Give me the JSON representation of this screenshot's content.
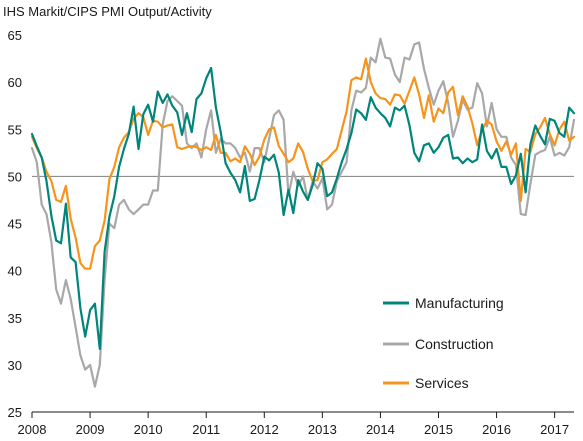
{
  "chart_data": {
    "type": "line",
    "title": "IHS Markit/CIPS PMI Output/Activity",
    "xlabel": "",
    "ylabel": "",
    "ylim": [
      25,
      65
    ],
    "yticks": [
      25,
      30,
      35,
      40,
      45,
      50,
      55,
      60,
      65
    ],
    "xticks": [
      "2008",
      "2009",
      "2010",
      "2011",
      "2012",
      "2013",
      "2014",
      "2015",
      "2016",
      "2017"
    ],
    "xlim": [
      "2008-01",
      "2017-05"
    ],
    "reference_line": 50,
    "legend_position": "bottom-right",
    "x": [
      "2008-01",
      "2008-02",
      "2008-03",
      "2008-04",
      "2008-05",
      "2008-06",
      "2008-07",
      "2008-08",
      "2008-09",
      "2008-10",
      "2008-11",
      "2008-12",
      "2009-01",
      "2009-02",
      "2009-03",
      "2009-04",
      "2009-05",
      "2009-06",
      "2009-07",
      "2009-08",
      "2009-09",
      "2009-10",
      "2009-11",
      "2009-12",
      "2010-01",
      "2010-02",
      "2010-03",
      "2010-04",
      "2010-05",
      "2010-06",
      "2010-07",
      "2010-08",
      "2010-09",
      "2010-10",
      "2010-11",
      "2010-12",
      "2011-01",
      "2011-02",
      "2011-03",
      "2011-04",
      "2011-05",
      "2011-06",
      "2011-07",
      "2011-08",
      "2011-09",
      "2011-10",
      "2011-11",
      "2011-12",
      "2012-01",
      "2012-02",
      "2012-03",
      "2012-04",
      "2012-05",
      "2012-06",
      "2012-07",
      "2012-08",
      "2012-09",
      "2012-10",
      "2012-11",
      "2012-12",
      "2013-01",
      "2013-02",
      "2013-03",
      "2013-04",
      "2013-05",
      "2013-06",
      "2013-07",
      "2013-08",
      "2013-09",
      "2013-10",
      "2013-11",
      "2013-12",
      "2014-01",
      "2014-02",
      "2014-03",
      "2014-04",
      "2014-05",
      "2014-06",
      "2014-07",
      "2014-08",
      "2014-09",
      "2014-10",
      "2014-11",
      "2014-12",
      "2015-01",
      "2015-02",
      "2015-03",
      "2015-04",
      "2015-05",
      "2015-06",
      "2015-07",
      "2015-08",
      "2015-09",
      "2015-10",
      "2015-11",
      "2015-12",
      "2016-01",
      "2016-02",
      "2016-03",
      "2016-04",
      "2016-05",
      "2016-06",
      "2016-07",
      "2016-08",
      "2016-09",
      "2016-10",
      "2016-11",
      "2016-12",
      "2017-01",
      "2017-02",
      "2017-03",
      "2017-04",
      "2017-05"
    ],
    "series": [
      {
        "name": "Manufacturing",
        "color": "#00857a",
        "values": [
          54.5,
          53.2,
          52.0,
          49.5,
          45.8,
          43.2,
          42.9,
          47.1,
          41.4,
          40.9,
          36.0,
          33.0,
          35.8,
          36.5,
          31.7,
          42.0,
          45.7,
          47.9,
          51.0,
          52.9,
          54.5,
          57.4,
          52.9,
          56.6,
          57.6,
          55.8,
          59.0,
          57.8,
          58.7,
          57.5,
          56.8,
          54.4,
          56.7,
          54.7,
          58.2,
          58.8,
          60.4,
          61.5,
          57.3,
          54.7,
          51.4,
          50.4,
          49.6,
          48.3,
          51.1,
          47.4,
          47.6,
          49.6,
          52.1,
          51.7,
          52.3,
          50.4,
          45.9,
          48.6,
          46.1,
          49.6,
          48.4,
          47.5,
          49.1,
          51.4,
          50.8,
          47.9,
          48.3,
          49.8,
          51.5,
          52.9,
          54.6,
          57.1,
          56.7,
          56.0,
          58.4,
          57.3,
          56.7,
          56.2,
          55.3,
          57.3,
          57.0,
          57.5,
          55.4,
          52.5,
          51.6,
          53.3,
          53.5,
          52.5,
          53.1,
          54.1,
          54.4,
          51.9,
          52.0,
          51.4,
          51.9,
          51.5,
          51.8,
          55.5,
          52.7,
          51.9,
          52.9,
          51.0,
          51.0,
          49.2,
          50.1,
          52.4,
          48.3,
          53.4,
          55.4,
          54.3,
          53.4,
          56.1,
          55.9,
          54.6,
          54.2,
          57.3,
          56.7
        ]
      },
      {
        "name": "Construction",
        "color": "#a8a8a8",
        "values": [
          53.0,
          51.5,
          47.0,
          46.0,
          43.0,
          38.0,
          36.5,
          39.0,
          37.0,
          34.0,
          31.0,
          29.5,
          30.0,
          27.7,
          30.0,
          39.0,
          45.0,
          44.5,
          47.0,
          47.5,
          46.5,
          46.0,
          46.5,
          47.0,
          47.0,
          48.5,
          48.5,
          55.5,
          58.0,
          58.5,
          58.0,
          57.5,
          53.5,
          53.0,
          53.5,
          52.0,
          55.0,
          57.0,
          52.5,
          54.0,
          53.5,
          53.5,
          53.0,
          52.0,
          52.5,
          50.5,
          53.0,
          53.0,
          51.5,
          54.0,
          56.5,
          57.0,
          56.0,
          48.0,
          50.5,
          49.0,
          50.0,
          47.5,
          49.5,
          48.7,
          49.8,
          46.5,
          47.0,
          49.5,
          50.5,
          51.5,
          57.0,
          59.1,
          58.9,
          59.4,
          62.6,
          62.1,
          64.6,
          62.6,
          62.5,
          60.8,
          60.0,
          62.6,
          62.4,
          64.0,
          64.2,
          61.4,
          59.4,
          57.6,
          59.1,
          60.1,
          57.8,
          54.2,
          55.9,
          58.1,
          57.1,
          57.3,
          59.9,
          58.8,
          55.3,
          57.8,
          55.0,
          54.2,
          54.2,
          52.0,
          51.2,
          46.0,
          45.9,
          49.2,
          52.3,
          52.6,
          52.8,
          54.2,
          52.2,
          52.5,
          52.2,
          53.1,
          56.0
        ]
      },
      {
        "name": "Services",
        "color": "#f7941d",
        "values": [
          54.2,
          53.0,
          52.0,
          50.5,
          49.5,
          47.5,
          47.3,
          49.0,
          45.5,
          43.5,
          40.8,
          40.2,
          40.2,
          42.6,
          43.2,
          45.3,
          49.7,
          51.0,
          53.1,
          54.1,
          54.7,
          56.1,
          56.7,
          56.3,
          54.4,
          55.9,
          55.8,
          55.2,
          55.4,
          55.5,
          53.1,
          52.9,
          53.1,
          53.2,
          53.1,
          52.8,
          53.1,
          52.8,
          54.4,
          52.5,
          52.5,
          51.6,
          51.9,
          51.5,
          53.2,
          52.4,
          51.2,
          52.1,
          53.9,
          55.0,
          55.2,
          53.2,
          52.4,
          51.5,
          51.9,
          53.5,
          52.6,
          50.8,
          49.5,
          49.6,
          51.5,
          51.8,
          52.4,
          52.9,
          54.9,
          56.9,
          60.2,
          60.5,
          60.3,
          62.5,
          60.0,
          58.8,
          58.3,
          58.2,
          57.6,
          58.7,
          58.6,
          57.7,
          59.1,
          60.5,
          58.7,
          56.2,
          58.6,
          55.8,
          57.2,
          56.7,
          58.9,
          59.5,
          56.5,
          58.5,
          57.4,
          55.6,
          53.3,
          54.9,
          55.9,
          55.5,
          53.7,
          52.7,
          53.7,
          52.3,
          53.5,
          47.4,
          52.9,
          52.6,
          54.5,
          55.2,
          56.2,
          54.5,
          53.3,
          55.0,
          55.8,
          53.8,
          54.2
        ]
      }
    ]
  }
}
